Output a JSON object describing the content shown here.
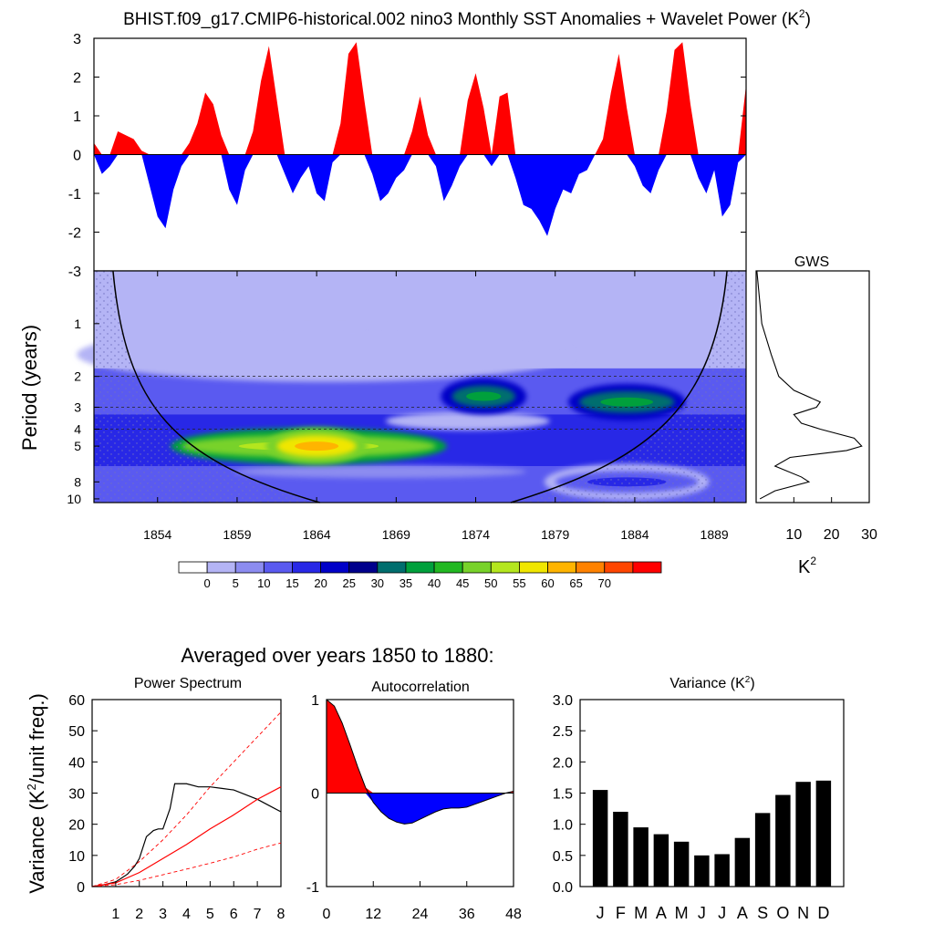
{
  "title": {
    "text": "BHIST.f09_g17.CMIP6-historical.002 nino3 Monthly SST Anomalies + Wavelet Power (K",
    "sup": "2",
    "close": ")"
  },
  "colors": {
    "positive": "#ff0000",
    "negative": "#0000ff",
    "coi_stipple": "#6f6fbf"
  },
  "chart_data": [
    {
      "id": "anomaly_timeseries",
      "type": "area",
      "title": "Monthly SST Anomalies",
      "xlim": [
        1850,
        1891
      ],
      "ylim": [
        -3,
        3
      ],
      "ytick_labels": [
        "3",
        "2",
        "1",
        "0",
        "-1",
        "-2",
        "-3"
      ],
      "ytick_values": [
        3,
        2,
        1,
        0,
        -1,
        -2,
        -3
      ],
      "x": [
        1850.0,
        1850.5,
        1851.0,
        1851.5,
        1852.0,
        1852.5,
        1853.0,
        1853.5,
        1854.0,
        1854.5,
        1855.0,
        1855.5,
        1856.0,
        1856.5,
        1857.0,
        1857.5,
        1858.0,
        1858.5,
        1859.0,
        1859.5,
        1860.0,
        1860.5,
        1861.0,
        1861.5,
        1862.0,
        1862.5,
        1863.0,
        1863.5,
        1864.0,
        1864.5,
        1865.0,
        1865.5,
        1866.0,
        1866.5,
        1867.0,
        1867.5,
        1868.0,
        1868.5,
        1869.0,
        1869.5,
        1870.0,
        1870.5,
        1871.0,
        1871.5,
        1872.0,
        1872.5,
        1873.0,
        1873.5,
        1874.0,
        1874.5,
        1875.0,
        1875.5,
        1876.0,
        1876.5,
        1877.0,
        1877.5,
        1878.0,
        1878.5,
        1879.0,
        1879.5,
        1880.0,
        1880.5,
        1881.0,
        1881.5,
        1882.0,
        1882.5,
        1883.0,
        1883.5,
        1884.0,
        1884.5,
        1885.0,
        1885.5,
        1886.0,
        1886.5,
        1887.0,
        1887.5,
        1888.0,
        1888.5,
        1889.0,
        1889.5,
        1890.0,
        1890.5,
        1891.0
      ],
      "y": [
        0.3,
        -0.5,
        -0.3,
        0.6,
        0.5,
        0.4,
        0.1,
        -0.8,
        -1.6,
        -1.9,
        -0.9,
        -0.3,
        0.3,
        0.8,
        1.6,
        1.3,
        0.5,
        -0.9,
        -1.3,
        -0.4,
        0.6,
        1.9,
        2.8,
        1.4,
        -0.5,
        -1.0,
        -0.6,
        -0.3,
        -1.0,
        -1.2,
        -0.2,
        0.8,
        2.6,
        2.9,
        1.4,
        -0.5,
        -1.2,
        -1.0,
        -0.6,
        -0.4,
        0.6,
        1.5,
        0.5,
        -0.3,
        -1.2,
        -0.8,
        -0.3,
        1.4,
        2.1,
        1.2,
        -0.3,
        1.5,
        1.6,
        -0.6,
        -1.3,
        -1.4,
        -1.7,
        -2.1,
        -1.4,
        -0.9,
        -1.0,
        -0.5,
        -0.4,
        0.0,
        0.4,
        1.6,
        2.6,
        1.2,
        -0.3,
        -0.8,
        -1.0,
        -0.4,
        1.1,
        2.7,
        2.9,
        1.3,
        -0.6,
        -1.0,
        -0.4,
        -1.6,
        -1.3,
        -0.2,
        1.8
      ],
      "series_colors": {
        "above_zero": "#ff0000",
        "below_zero": "#0000ff"
      }
    },
    {
      "id": "wavelet_power",
      "type": "heatmap",
      "ylabel": "Period (years)",
      "ytick_labels": [
        "1",
        "2",
        "3",
        "4",
        "5",
        "8",
        "10"
      ],
      "ytick_values": [
        1,
        2,
        3,
        4,
        5,
        8,
        10
      ],
      "ylim": [
        0.5,
        10.5
      ],
      "xtick_labels": [
        "1854",
        "1859",
        "1864",
        "1869",
        "1874",
        "1879",
        "1884",
        "1889"
      ],
      "xtick_values": [
        1854,
        1859,
        1864,
        1869,
        1874,
        1879,
        1884,
        1889
      ],
      "xlim": [
        1850,
        1891
      ],
      "dashed_periods": [
        2,
        3,
        4
      ],
      "colorbar_levels": [
        "0",
        "5",
        "10",
        "15",
        "20",
        "25",
        "30",
        "35",
        "40",
        "45",
        "50",
        "55",
        "60",
        "65",
        "70"
      ],
      "colorbar_colors": [
        "#ffffff",
        "#b4b4f5",
        "#8c8cf0",
        "#5a5af0",
        "#2828e6",
        "#0000c8",
        "#00008c",
        "#006e6e",
        "#00a03c",
        "#22b822",
        "#78d22a",
        "#b4e61e",
        "#f0e600",
        "#ffb400",
        "#ff8200",
        "#ff4600",
        "#ff0000"
      ],
      "blobs": [
        {
          "x0": 1855.5,
          "x1": 1871.5,
          "period": 5.0,
          "level": 50
        },
        {
          "x0": 1861.5,
          "x1": 1866.5,
          "period": 5.0,
          "level": 60
        },
        {
          "x0": 1872.5,
          "x1": 1876.5,
          "period": 2.6,
          "level": 35
        },
        {
          "x0": 1880.5,
          "x1": 1886.5,
          "period": 2.8,
          "level": 35
        },
        {
          "x0": 1879.0,
          "x1": 1888.0,
          "period": 8.0,
          "level": 15
        }
      ]
    },
    {
      "id": "gws",
      "type": "line",
      "title": "GWS",
      "xlabel": "K",
      "xlabel_sup": "2",
      "xtick_labels": [
        "10",
        "20",
        "30"
      ],
      "xtick_values": [
        10,
        20,
        30
      ],
      "xlim": [
        0,
        30
      ],
      "period": [
        0.5,
        1.0,
        1.5,
        2.0,
        2.4,
        2.8,
        3.0,
        3.3,
        3.7,
        4.0,
        4.5,
        5.0,
        5.3,
        5.8,
        6.5,
        7.5,
        8.0,
        9.0,
        10.0
      ],
      "power": [
        0.2,
        1.5,
        4.0,
        6.0,
        10.0,
        17.0,
        16.0,
        10.0,
        12.0,
        17.0,
        26.0,
        28.0,
        24.0,
        9.0,
        5.0,
        12.0,
        14.0,
        5.0,
        1.0
      ]
    },
    {
      "id": "power_spectrum",
      "type": "line",
      "title": "Power Spectrum",
      "ylabel": "Variance (K",
      "ylabel_sup": "2",
      "ylabel_close": "/unit freq.)",
      "xlim": [
        0,
        8
      ],
      "ylim": [
        0,
        60
      ],
      "xtick_labels": [
        "1",
        "2",
        "3",
        "4",
        "5",
        "6",
        "7",
        "8"
      ],
      "xtick_values": [
        1,
        2,
        3,
        4,
        5,
        6,
        7,
        8
      ],
      "ytick_labels": [
        "0",
        "10",
        "20",
        "30",
        "40",
        "50",
        "60"
      ],
      "ytick_values": [
        0,
        10,
        20,
        30,
        40,
        50,
        60
      ],
      "series": [
        {
          "name": "spectrum",
          "color": "#000000",
          "x": [
            0.0,
            0.5,
            1.0,
            1.2,
            1.5,
            1.8,
            2.0,
            2.3,
            2.6,
            2.8,
            3.0,
            3.3,
            3.5,
            4.0,
            4.5,
            5.0,
            5.5,
            6.0,
            6.5,
            7.0,
            7.5,
            8.0
          ],
          "y": [
            0,
            0.6,
            1.5,
            2.5,
            4.0,
            6.5,
            9.0,
            16.0,
            18.0,
            18.5,
            18.5,
            25.0,
            33.0,
            33.0,
            32.0,
            32.0,
            31.5,
            31.0,
            29.5,
            28.0,
            26.0,
            24.0
          ]
        },
        {
          "name": "red-noise",
          "color": "#ff0000",
          "x": [
            0,
            1,
            2,
            3,
            4,
            5,
            6,
            7,
            8
          ],
          "y": [
            0,
            1.2,
            4.5,
            9.0,
            13.5,
            18.5,
            23.0,
            28.0,
            32.0
          ]
        },
        {
          "name": "upper-confidence",
          "color": "#ff0000",
          "dashed": true,
          "x": [
            0,
            1,
            2,
            3,
            4,
            5,
            6,
            7,
            8
          ],
          "y": [
            0,
            2.3,
            8.0,
            15.0,
            23.0,
            32.0,
            40.0,
            48.0,
            56.0
          ]
        },
        {
          "name": "lower-confidence",
          "color": "#ff0000",
          "dashed": true,
          "x": [
            0,
            1,
            2,
            3,
            4,
            5,
            6,
            7,
            8
          ],
          "y": [
            0,
            0.6,
            2.0,
            3.8,
            5.6,
            7.5,
            9.5,
            12.0,
            14.0
          ]
        }
      ]
    },
    {
      "id": "autocorrelation",
      "type": "area",
      "title": "Autocorrelation",
      "xlim": [
        0,
        48
      ],
      "ylim": [
        -1,
        1
      ],
      "xtick_labels": [
        "0",
        "12",
        "24",
        "36",
        "48"
      ],
      "xtick_values": [
        0,
        12,
        24,
        36,
        48
      ],
      "ytick_labels": [
        "1",
        "0",
        "-1"
      ],
      "ytick_values": [
        1,
        0,
        -1
      ],
      "x": [
        0,
        2,
        4,
        6,
        8,
        10,
        12,
        14,
        16,
        18,
        20,
        22,
        24,
        26,
        28,
        30,
        32,
        34,
        36,
        38,
        40,
        42,
        44,
        46,
        48
      ],
      "y": [
        1.0,
        0.93,
        0.75,
        0.52,
        0.28,
        0.06,
        -0.1,
        -0.2,
        -0.27,
        -0.31,
        -0.33,
        -0.32,
        -0.28,
        -0.24,
        -0.2,
        -0.17,
        -0.16,
        -0.16,
        -0.15,
        -0.12,
        -0.09,
        -0.06,
        -0.03,
        0.0,
        0.02
      ]
    },
    {
      "id": "variance",
      "type": "bar",
      "title": "Variance (K",
      "title_sup": "2",
      "title_close": ")",
      "categories": [
        "J",
        "F",
        "M",
        "A",
        "M",
        "J",
        "J",
        "A",
        "S",
        "O",
        "N",
        "D"
      ],
      "values": [
        1.55,
        1.2,
        0.95,
        0.84,
        0.72,
        0.5,
        0.52,
        0.78,
        1.18,
        1.47,
        1.68,
        1.7
      ],
      "ylim": [
        0,
        3
      ],
      "ytick_labels": [
        "0.0",
        "0.5",
        "1.0",
        "1.5",
        "2.0",
        "2.5",
        "3.0"
      ],
      "ytick_values": [
        0,
        0.5,
        1.0,
        1.5,
        2.0,
        2.5,
        3.0
      ]
    }
  ],
  "averaged_caption": "Averaged over years 1850 to 1880:"
}
